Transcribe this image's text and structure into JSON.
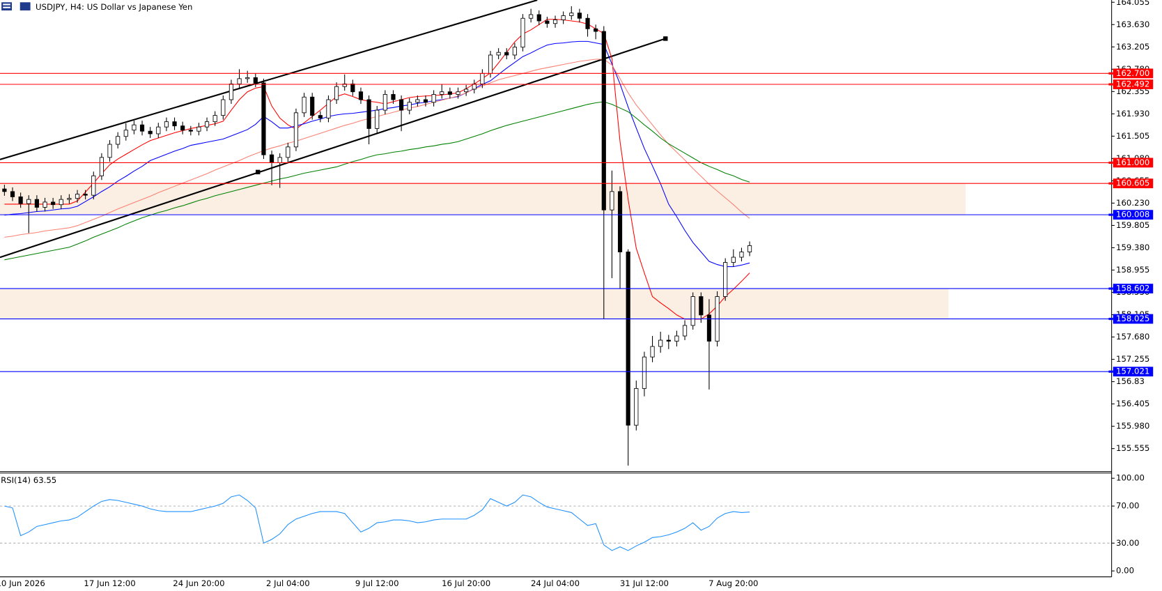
{
  "chart_data": [
    {
      "type": "candlestick",
      "title": "USDJPY, H4:  US Dollar vs Japanese Yen",
      "categories": [
        null,
        null,
        "10 Jun 2026",
        null,
        null,
        null,
        null,
        null,
        null,
        null,
        null,
        null,
        null,
        "17 Jun 12:00",
        null,
        null,
        null,
        null,
        null,
        null,
        null,
        null,
        null,
        null,
        "24 Jun 20:00",
        null,
        null,
        null,
        null,
        null,
        null,
        null,
        null,
        null,
        null,
        "2 Jul 04:00",
        null,
        null,
        null,
        null,
        null,
        null,
        null,
        null,
        null,
        null,
        "9 Jul 12:00",
        null,
        null,
        null,
        null,
        null,
        null,
        null,
        null,
        null,
        null,
        "16 Jul 20:00",
        null,
        null,
        null,
        null,
        null,
        null,
        null,
        null,
        null,
        null,
        "24 Jul 04:00",
        null,
        null,
        null,
        null,
        null,
        null,
        null,
        null,
        null,
        null,
        "31 Jul 12:00",
        null,
        null,
        null,
        null,
        null,
        null,
        null,
        null,
        null,
        null,
        "7 Aug 20:00",
        null,
        null
      ],
      "open": [
        160.5,
        160.45,
        160.35,
        160.22,
        160.3,
        160.15,
        160.25,
        160.2,
        160.3,
        160.32,
        160.4,
        160.38,
        160.75,
        161.1,
        161.35,
        161.5,
        161.62,
        161.72,
        161.6,
        161.55,
        161.68,
        161.78,
        161.7,
        161.62,
        161.6,
        161.68,
        161.78,
        161.9,
        162.2,
        162.5,
        162.6,
        162.62,
        162.52,
        161.15,
        161.0,
        161.1,
        161.3,
        161.95,
        162.25,
        161.9,
        161.85,
        162.2,
        162.45,
        162.5,
        162.35,
        162.2,
        161.65,
        162.0,
        162.3,
        162.2,
        162.0,
        162.15,
        162.2,
        162.15,
        162.3,
        162.35,
        162.3,
        162.35,
        162.4,
        162.5,
        162.7,
        163.05,
        163.1,
        163.05,
        163.2,
        163.75,
        163.82,
        163.7,
        163.65,
        163.72,
        163.8,
        163.85,
        163.75,
        163.55,
        163.5,
        160.1,
        160.45,
        159.3,
        156.0,
        156.7,
        157.3,
        157.5,
        157.62,
        157.6,
        157.7,
        157.9,
        158.45,
        158.1,
        157.6,
        158.45,
        159.1,
        159.2,
        159.3
      ],
      "high": [
        160.58,
        160.53,
        160.43,
        160.38,
        160.38,
        160.33,
        160.33,
        160.38,
        160.4,
        160.48,
        160.48,
        160.83,
        161.18,
        161.43,
        161.58,
        161.75,
        161.8,
        161.8,
        161.68,
        161.76,
        161.86,
        161.86,
        161.78,
        161.7,
        161.76,
        161.86,
        161.98,
        162.28,
        162.58,
        162.78,
        162.75,
        162.7,
        162.6,
        161.23,
        161.18,
        161.38,
        162.03,
        162.33,
        162.33,
        161.98,
        162.28,
        162.53,
        162.68,
        162.58,
        162.43,
        162.28,
        162.08,
        162.38,
        162.38,
        162.28,
        162.23,
        162.28,
        162.28,
        162.38,
        162.5,
        162.43,
        162.43,
        162.48,
        162.58,
        162.78,
        163.13,
        163.18,
        163.18,
        163.28,
        163.83,
        163.93,
        163.9,
        163.78,
        163.8,
        163.88,
        163.98,
        163.93,
        163.83,
        163.63,
        163.6,
        160.85,
        160.55,
        159.35,
        156.85,
        157.4,
        157.7,
        157.78,
        157.72,
        157.8,
        158.0,
        158.53,
        158.53,
        158.4,
        158.55,
        159.18,
        159.35,
        159.38,
        159.5
      ],
      "low": [
        160.37,
        160.27,
        160.14,
        159.66,
        160.07,
        160.07,
        160.12,
        160.12,
        160.22,
        160.24,
        160.3,
        160.3,
        160.67,
        161.02,
        161.27,
        161.42,
        161.54,
        161.52,
        161.47,
        161.47,
        161.6,
        161.62,
        161.54,
        161.52,
        161.52,
        161.6,
        161.7,
        161.82,
        162.12,
        162.42,
        162.52,
        162.44,
        161.07,
        160.57,
        160.52,
        161.02,
        161.22,
        161.87,
        161.82,
        161.77,
        161.77,
        162.12,
        162.37,
        162.27,
        162.12,
        161.35,
        161.57,
        161.92,
        162.12,
        161.6,
        161.92,
        162.07,
        162.07,
        162.07,
        162.22,
        162.22,
        162.22,
        162.27,
        162.32,
        162.42,
        162.62,
        162.97,
        162.97,
        162.97,
        163.12,
        163.67,
        163.62,
        163.57,
        163.57,
        163.64,
        163.72,
        163.67,
        163.4,
        163.35,
        158.03,
        158.8,
        158.6,
        155.23,
        155.9,
        156.55,
        157.2,
        157.38,
        157.45,
        157.5,
        157.62,
        157.82,
        157.95,
        156.68,
        157.5,
        158.37,
        159.02,
        159.12,
        159.22
      ],
      "close": [
        160.45,
        160.35,
        160.22,
        160.3,
        160.15,
        160.25,
        160.2,
        160.3,
        160.32,
        160.4,
        160.38,
        160.75,
        161.1,
        161.35,
        161.5,
        161.62,
        161.72,
        161.6,
        161.55,
        161.68,
        161.78,
        161.7,
        161.62,
        161.6,
        161.68,
        161.78,
        161.9,
        162.2,
        162.5,
        162.6,
        162.62,
        162.52,
        161.15,
        161.0,
        161.1,
        161.3,
        161.95,
        162.25,
        161.9,
        161.85,
        162.2,
        162.45,
        162.5,
        162.35,
        162.2,
        161.65,
        162.0,
        162.3,
        162.2,
        162.0,
        162.15,
        162.2,
        162.15,
        162.3,
        162.35,
        162.3,
        162.35,
        162.4,
        162.5,
        162.7,
        163.05,
        163.1,
        163.05,
        163.2,
        163.75,
        163.82,
        163.7,
        163.65,
        163.72,
        163.8,
        163.85,
        163.75,
        163.55,
        163.5,
        160.1,
        160.45,
        159.3,
        156.0,
        156.7,
        157.3,
        157.5,
        157.62,
        157.6,
        157.7,
        157.9,
        158.45,
        158.1,
        157.6,
        158.45,
        159.1,
        159.2,
        159.3,
        159.42
      ],
      "series": [
        {
          "color": "#ff0000",
          "values": [
            160.21,
            160.21,
            160.21,
            160.21,
            160.21,
            160.21,
            160.21,
            160.21,
            160.21,
            160.27,
            160.44,
            160.61,
            160.79,
            160.96,
            161.07,
            161.16,
            161.25,
            161.34,
            161.42,
            161.47,
            161.52,
            161.57,
            161.61,
            161.65,
            161.68,
            161.71,
            161.74,
            161.79,
            162.0,
            162.2,
            162.35,
            162.42,
            162.45,
            162.08,
            161.85,
            161.72,
            161.64,
            161.76,
            161.88,
            162.0,
            162.13,
            162.26,
            162.31,
            162.26,
            162.2,
            162.17,
            162.15,
            162.12,
            162.16,
            162.2,
            162.24,
            162.26,
            162.27,
            162.28,
            162.29,
            162.31,
            162.33,
            162.41,
            162.5,
            162.6,
            162.71,
            162.9,
            163.1,
            163.3,
            163.45,
            163.53,
            163.63,
            163.73,
            163.73,
            163.72,
            163.7,
            163.68,
            163.64,
            163.55,
            163.46,
            162.98,
            161.4,
            160.3,
            159.37,
            158.9,
            158.45,
            158.33,
            158.22,
            158.1,
            158.02,
            158.02,
            158.02,
            158.12,
            158.27,
            158.45,
            158.59,
            158.74,
            158.9
          ]
        },
        {
          "color": "#0000ff",
          "values": [
            160.0,
            160.02,
            160.03,
            160.05,
            160.07,
            160.08,
            160.1,
            160.12,
            160.13,
            160.17,
            160.26,
            160.35,
            160.45,
            160.54,
            160.65,
            160.74,
            160.84,
            160.93,
            161.04,
            161.1,
            161.16,
            161.22,
            161.27,
            161.33,
            161.36,
            161.39,
            161.42,
            161.45,
            161.51,
            161.57,
            161.63,
            161.73,
            161.88,
            161.78,
            161.66,
            161.66,
            161.7,
            161.74,
            161.79,
            161.83,
            161.88,
            161.91,
            161.93,
            161.94,
            161.96,
            161.98,
            162.0,
            162.03,
            162.05,
            162.08,
            162.1,
            162.13,
            162.15,
            162.18,
            162.2,
            162.23,
            162.26,
            162.33,
            162.41,
            162.49,
            162.56,
            162.68,
            162.8,
            162.91,
            163.02,
            163.09,
            163.17,
            163.24,
            163.27,
            163.28,
            163.3,
            163.31,
            163.31,
            163.28,
            163.25,
            162.88,
            162.5,
            162.06,
            161.66,
            161.27,
            160.94,
            160.6,
            160.21,
            159.97,
            159.71,
            159.48,
            159.3,
            159.12,
            159.06,
            159.02,
            159.02,
            159.05,
            159.09
          ]
        },
        {
          "color": "#fa8072",
          "values": [
            159.58,
            159.6,
            159.63,
            159.65,
            159.67,
            159.7,
            159.72,
            159.74,
            159.76,
            159.8,
            159.86,
            159.92,
            159.98,
            160.05,
            160.12,
            160.18,
            160.24,
            160.3,
            160.36,
            160.43,
            160.49,
            160.55,
            160.61,
            160.67,
            160.73,
            160.79,
            160.86,
            160.92,
            160.98,
            161.04,
            161.11,
            161.17,
            161.23,
            161.28,
            161.32,
            161.37,
            161.41,
            161.46,
            161.51,
            161.56,
            161.61,
            161.66,
            161.71,
            161.75,
            161.8,
            161.84,
            161.88,
            161.92,
            161.96,
            162.0,
            162.04,
            162.07,
            162.11,
            162.15,
            162.19,
            162.23,
            162.27,
            162.33,
            162.4,
            162.46,
            162.52,
            162.58,
            162.62,
            162.66,
            162.7,
            162.74,
            162.78,
            162.81,
            162.84,
            162.87,
            162.9,
            162.93,
            162.95,
            162.97,
            162.97,
            162.86,
            162.6,
            162.33,
            162.1,
            161.91,
            161.72,
            161.53,
            161.35,
            161.2,
            161.05,
            160.89,
            160.74,
            160.59,
            160.46,
            160.33,
            160.2,
            160.06,
            159.94
          ]
        },
        {
          "color": "#008000",
          "values": [
            159.15,
            159.18,
            159.21,
            159.24,
            159.27,
            159.3,
            159.33,
            159.36,
            159.39,
            159.45,
            159.51,
            159.58,
            159.64,
            159.7,
            159.76,
            159.83,
            159.89,
            159.95,
            160.0,
            160.05,
            160.09,
            160.14,
            160.18,
            160.23,
            160.28,
            160.32,
            160.37,
            160.41,
            160.45,
            160.49,
            160.53,
            160.57,
            160.61,
            160.65,
            160.69,
            160.72,
            160.76,
            160.8,
            160.83,
            160.86,
            160.89,
            160.92,
            160.97,
            161.02,
            161.06,
            161.11,
            161.15,
            161.17,
            161.2,
            161.22,
            161.25,
            161.27,
            161.3,
            161.32,
            161.35,
            161.37,
            161.4,
            161.45,
            161.5,
            161.55,
            161.61,
            161.66,
            161.71,
            161.75,
            161.79,
            161.83,
            161.87,
            161.91,
            161.95,
            161.99,
            162.03,
            162.07,
            162.11,
            162.14,
            162.16,
            162.11,
            162.04,
            161.97,
            161.85,
            161.72,
            161.6,
            161.47,
            161.36,
            161.27,
            161.18,
            161.09,
            161.0,
            160.93,
            160.87,
            160.8,
            160.75,
            160.68,
            160.63
          ]
        }
      ],
      "levels": [
        {
          "value": 162.7,
          "label": "162.700",
          "color": "#ff0000"
        },
        {
          "value": 162.492,
          "label": "162.492",
          "color": "#ff0000"
        },
        {
          "value": 161,
          "label": "161.000",
          "color": "#ff0000"
        },
        {
          "value": 160.605,
          "label": "160.605",
          "color": "#ff0000"
        },
        {
          "value": 160.008,
          "label": "160.008",
          "color": "#0000ff"
        },
        {
          "value": 158.602,
          "label": "158.602",
          "color": "#0000ff"
        },
        {
          "value": 158.025,
          "label": "158.025",
          "color": "#0000ff"
        },
        {
          "value": 157.021,
          "label": "157.021",
          "color": "#0000ff"
        }
      ],
      "zones": [
        {
          "low": 160.008,
          "high": 160.605
        },
        {
          "low": 158.025,
          "high": 158.602
        }
      ],
      "ylim": [
        155.117,
        164.097
      ],
      "yticks": [
        164.055,
        {
          "value": 163.63,
          "label": "163.630"
        },
        163.205,
        {
          "value": 162.78,
          "label": "162.780"
        },
        162.355,
        {
          "value": 161.93,
          "label": "161.930"
        },
        161.505,
        {
          "value": 161.08,
          "label": "161.080"
        },
        160.655,
        {
          "value": 160.23,
          "label": "160.230"
        },
        159.805,
        {
          "value": 159.38,
          "label": "159.380"
        },
        158.955,
        {
          "value": 158.53,
          "label": "158.530"
        },
        158.105,
        {
          "value": 157.68,
          "label": "157.680"
        },
        157.255,
        156.83,
        156.405,
        {
          "value": 155.98,
          "label": "155.980"
        },
        155.555
      ]
    },
    {
      "type": "line",
      "title": "RSI(14) 63.55",
      "series": [
        {
          "color": "#1e90ff",
          "values": [
            70,
            68,
            38,
            42,
            48,
            50,
            52,
            54,
            55,
            58,
            64,
            70,
            75,
            77,
            76,
            74,
            72,
            70,
            67,
            65,
            64,
            64,
            64,
            64,
            66,
            68,
            70,
            73,
            80,
            82,
            76,
            68,
            30,
            34,
            40,
            50,
            56,
            59,
            62,
            64,
            64,
            64,
            62,
            52,
            42,
            46,
            52,
            53,
            55,
            55,
            54,
            52,
            53,
            55,
            56,
            56,
            56,
            56,
            60,
            66,
            78,
            74,
            70,
            74,
            82,
            80,
            74,
            69,
            67,
            65,
            63,
            56,
            49,
            51,
            28,
            22,
            26,
            22,
            27,
            31,
            36,
            37,
            39,
            42,
            46,
            52,
            44,
            48,
            57,
            62,
            64,
            63,
            63.55
          ]
        }
      ],
      "levels": [
        70,
        30
      ],
      "ylim": [
        -6.4,
        105.6
      ],
      "yticks": [
        {
          "value": 100,
          "label": "100.00"
        },
        {
          "value": 70,
          "label": "70.00"
        },
        {
          "value": 30,
          "label": "30.00"
        },
        {
          "value": 0,
          "label": "0.00"
        }
      ]
    }
  ]
}
